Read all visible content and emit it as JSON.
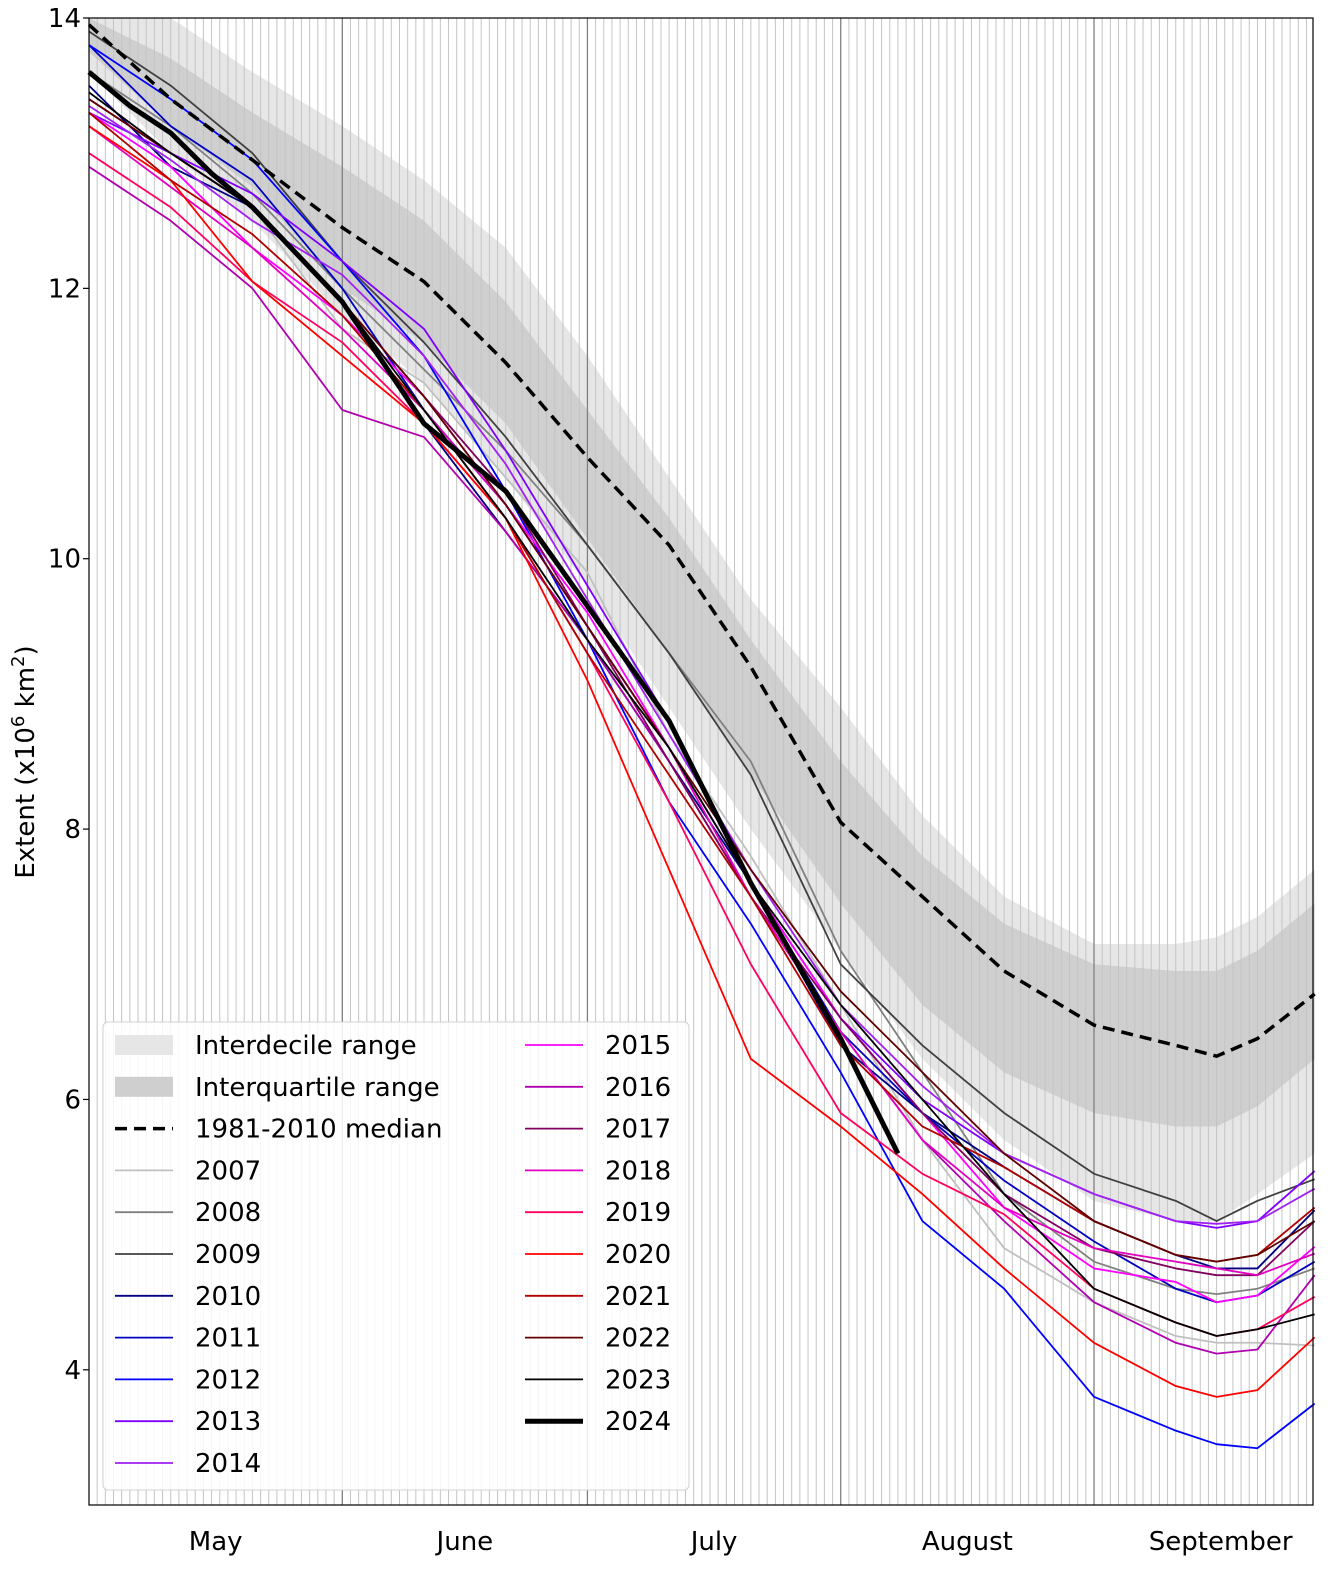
{
  "chart_data": {
    "type": "line",
    "title": "",
    "xlabel": "",
    "ylabel": "Extent (x10⁶ km²)",
    "ylabel_parts": {
      "prefix": "Extent (x10",
      "sup1": "6",
      "mid": " km",
      "sup2": "2",
      "suffix": ")"
    },
    "ylim": [
      3,
      14
    ],
    "xlim": [
      "05-01",
      "09-28"
    ],
    "yticks": [
      "4",
      "6",
      "8",
      "10",
      "12",
      "14"
    ],
    "xtick_labels": [
      "May",
      "June",
      "July",
      "August",
      "September"
    ],
    "grid": "daily vertical lines",
    "legend_placement": "bottom-left",
    "x": [
      "05-01",
      "05-11",
      "05-21",
      "06-01",
      "06-11",
      "06-21",
      "07-01",
      "07-11",
      "07-21",
      "08-01",
      "08-11",
      "08-21",
      "09-01",
      "09-11",
      "09-16",
      "09-21",
      "09-28"
    ],
    "bands": [
      {
        "name": "Interdecile range",
        "color": "#e6e6e6",
        "upper": [
          14.2,
          14.0,
          13.6,
          13.2,
          12.8,
          12.3,
          11.5,
          10.6,
          9.7,
          8.9,
          8.1,
          7.5,
          7.15,
          7.15,
          7.2,
          7.35,
          7.7
        ],
        "lower": [
          13.6,
          13.0,
          12.5,
          11.8,
          11.3,
          10.6,
          9.8,
          8.9,
          8.0,
          7.1,
          6.3,
          5.7,
          5.25,
          5.1,
          5.1,
          5.3,
          5.6
        ]
      },
      {
        "name": "Interquartile range",
        "color": "#cfcfcf",
        "upper": [
          14.0,
          13.7,
          13.3,
          12.9,
          12.5,
          11.9,
          11.1,
          10.3,
          9.4,
          8.5,
          7.8,
          7.3,
          7.0,
          6.95,
          6.95,
          7.1,
          7.45
        ],
        "lower": [
          13.75,
          13.2,
          12.75,
          12.0,
          11.6,
          11.0,
          10.15,
          9.3,
          8.4,
          7.45,
          6.7,
          6.2,
          5.9,
          5.8,
          5.8,
          5.95,
          6.3
        ]
      }
    ],
    "median": {
      "name": "1981-2010 median",
      "color": "#000000",
      "values": [
        13.95,
        13.4,
        12.95,
        12.45,
        12.05,
        11.45,
        10.75,
        10.1,
        9.2,
        8.05,
        7.5,
        6.95,
        6.55,
        6.4,
        6.32,
        6.45,
        6.78
      ]
    },
    "series": [
      {
        "name": "2007",
        "color": "#c0c0c0",
        "values": [
          13.4,
          13.0,
          12.6,
          11.7,
          11.3,
          10.6,
          9.9,
          8.7,
          7.8,
          6.7,
          5.7,
          4.9,
          4.5,
          4.25,
          4.2,
          4.2,
          4.18
        ]
      },
      {
        "name": "2008",
        "color": "#808080",
        "values": [
          13.6,
          13.2,
          12.7,
          12.0,
          11.4,
          10.8,
          10.1,
          9.3,
          8.5,
          7.1,
          6.2,
          5.3,
          4.8,
          4.6,
          4.56,
          4.6,
          4.75
        ]
      },
      {
        "name": "2009",
        "color": "#404040",
        "values": [
          13.9,
          13.5,
          13.0,
          12.2,
          11.6,
          10.9,
          10.1,
          9.3,
          8.4,
          7.0,
          6.4,
          5.9,
          5.45,
          5.25,
          5.1,
          5.25,
          5.41
        ]
      },
      {
        "name": "2010",
        "color": "#000080",
        "values": [
          13.5,
          12.9,
          12.6,
          11.9,
          11.0,
          10.2,
          9.4,
          8.5,
          7.6,
          6.4,
          5.9,
          5.5,
          5.1,
          4.85,
          4.75,
          4.75,
          5.18
        ]
      },
      {
        "name": "2011",
        "color": "#0000c0",
        "values": [
          13.8,
          13.2,
          12.8,
          12.0,
          11.1,
          10.4,
          9.5,
          8.6,
          7.6,
          6.5,
          5.9,
          5.4,
          4.95,
          4.6,
          4.5,
          4.55,
          4.8
        ]
      },
      {
        "name": "2012",
        "color": "#0000ff",
        "values": [
          13.8,
          13.4,
          12.95,
          12.2,
          11.5,
          10.5,
          9.4,
          8.2,
          7.3,
          6.2,
          5.1,
          4.6,
          3.8,
          3.55,
          3.45,
          3.42,
          3.75
        ]
      },
      {
        "name": "2013",
        "color": "#7f00ff",
        "values": [
          13.3,
          13.0,
          12.7,
          12.2,
          11.7,
          10.8,
          9.8,
          8.8,
          7.6,
          6.6,
          6.0,
          5.6,
          5.3,
          5.1,
          5.05,
          5.1,
          5.47
        ]
      },
      {
        "name": "2014",
        "color": "#a020f0",
        "values": [
          13.35,
          12.95,
          12.5,
          12.1,
          11.5,
          10.7,
          9.7,
          8.7,
          7.7,
          6.7,
          6.1,
          5.6,
          5.3,
          5.1,
          5.08,
          5.1,
          5.34
        ]
      },
      {
        "name": "2015",
        "color": "#ff00ff",
        "values": [
          13.3,
          12.9,
          12.3,
          11.8,
          11.2,
          10.4,
          9.6,
          8.6,
          7.6,
          6.6,
          5.9,
          5.2,
          4.75,
          4.65,
          4.5,
          4.55,
          4.91
        ]
      },
      {
        "name": "2016",
        "color": "#b000b0",
        "values": [
          12.9,
          12.5,
          12.0,
          11.1,
          10.9,
          10.2,
          9.4,
          8.5,
          7.5,
          6.5,
          5.7,
          5.1,
          4.5,
          4.2,
          4.12,
          4.15,
          4.7
        ]
      },
      {
        "name": "2017",
        "color": "#800060",
        "values": [
          13.4,
          13.0,
          12.6,
          11.9,
          11.2,
          10.5,
          9.5,
          8.5,
          7.5,
          6.6,
          5.9,
          5.3,
          4.9,
          4.75,
          4.7,
          4.7,
          5.1
        ]
      },
      {
        "name": "2018",
        "color": "#e000c0",
        "values": [
          13.2,
          12.75,
          12.3,
          11.7,
          11.1,
          10.4,
          9.5,
          8.6,
          7.5,
          6.5,
          5.7,
          5.2,
          4.9,
          4.8,
          4.75,
          4.7,
          4.86
        ]
      },
      {
        "name": "2019",
        "color": "#ff0060",
        "values": [
          13.0,
          12.6,
          12.05,
          11.6,
          11.0,
          10.3,
          9.3,
          8.2,
          7.0,
          5.9,
          5.45,
          5.15,
          4.6,
          4.35,
          4.25,
          4.3,
          4.54
        ]
      },
      {
        "name": "2020",
        "color": "#ff0000",
        "values": [
          13.2,
          12.8,
          12.05,
          11.5,
          11.0,
          10.3,
          9.1,
          7.7,
          6.3,
          5.8,
          5.3,
          4.75,
          4.2,
          3.88,
          3.8,
          3.85,
          4.24
        ]
      },
      {
        "name": "2021",
        "color": "#b00000",
        "values": [
          13.3,
          12.8,
          12.4,
          11.8,
          11.1,
          10.3,
          9.3,
          8.4,
          7.5,
          6.4,
          5.8,
          5.5,
          5.1,
          4.85,
          4.8,
          4.85,
          5.2
        ]
      },
      {
        "name": "2022",
        "color": "#600000",
        "values": [
          13.4,
          13.0,
          12.6,
          11.9,
          11.2,
          10.4,
          9.5,
          8.6,
          7.7,
          6.8,
          6.2,
          5.6,
          5.1,
          4.85,
          4.8,
          4.85,
          5.1
        ]
      },
      {
        "name": "2023",
        "color": "#000000",
        "values": [
          13.45,
          13.0,
          12.6,
          11.9,
          11.1,
          10.3,
          9.4,
          8.6,
          7.6,
          6.7,
          6.0,
          5.3,
          4.6,
          4.35,
          4.25,
          4.3,
          4.41
        ]
      },
      {
        "name": "2024",
        "color": "#000000",
        "thick": true,
        "x": [
          "05-01",
          "05-06",
          "05-11",
          "05-16",
          "05-21",
          "06-01",
          "06-11",
          "06-21",
          "07-01",
          "07-11",
          "07-21",
          "08-01",
          "08-08"
        ],
        "values": [
          13.6,
          13.35,
          13.15,
          12.85,
          12.6,
          11.9,
          11.0,
          10.5,
          9.65,
          8.8,
          7.6,
          6.45,
          5.6
        ]
      }
    ]
  }
}
